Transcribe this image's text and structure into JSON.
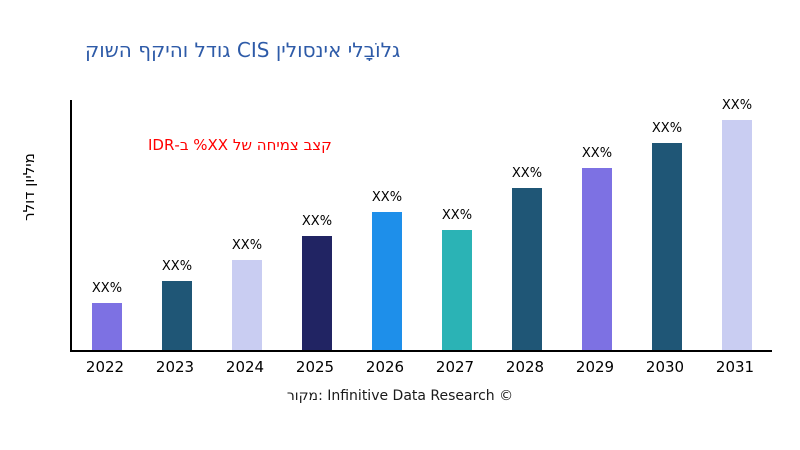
{
  "title": "גלוֹבָלי אינסולין CIS גודל והיקף השוק",
  "title_color": "#2e5ba8",
  "ylabel": "מיליון דולר",
  "annotation": {
    "text": "קצב צמיחה של XX% ב-IDR",
    "color": "#ff0000"
  },
  "footer": "מקור: Infinitive Data Research ©",
  "chart_data": {
    "type": "bar",
    "title": "גלוֹבָלי אינסולין CIS גודל והיקף השוק",
    "xlabel": "",
    "ylabel": "מיליון דולר",
    "categories": [
      "2022",
      "2023",
      "2024",
      "2025",
      "2026",
      "2027",
      "2028",
      "2029",
      "2030",
      "2031"
    ],
    "values": [
      47,
      69,
      90,
      114,
      138,
      120,
      162,
      182,
      207,
      230
    ],
    "values_note": "estimated relative units read from bar heights; actual values shown only as XX% placeholders",
    "bar_labels": [
      "XX%",
      "XX%",
      "XX%",
      "XX%",
      "XX%",
      "XX%",
      "XX%",
      "XX%",
      "XX%",
      "XX%"
    ],
    "bar_colors": [
      "#7d71e3",
      "#1f5676",
      "#c9cdf2",
      "#212463",
      "#1e8fea",
      "#2bb3b5",
      "#1f5676",
      "#7d71e3",
      "#1f5676",
      "#c9cdf2"
    ],
    "ylim": [
      0,
      250
    ],
    "grid": false,
    "legend": "none",
    "axis_color": "#000000"
  }
}
